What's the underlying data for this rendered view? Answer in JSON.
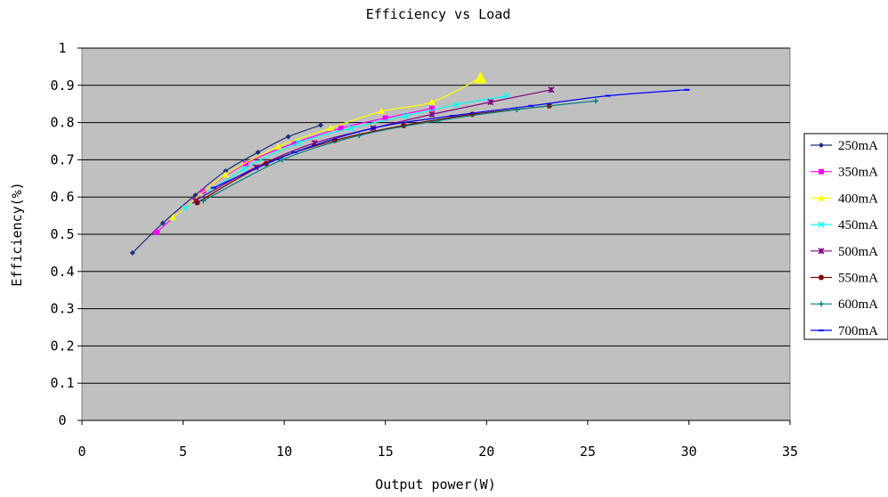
{
  "chart_data": {
    "type": "line",
    "title": "Efficiency vs Load",
    "xlabel": "Output power(W)",
    "ylabel": "Efficiency(%)",
    "xlim": [
      0,
      35
    ],
    "ylim": [
      0,
      1
    ],
    "x_ticks": [
      "0",
      "5",
      "10",
      "15",
      "20",
      "25",
      "30",
      "35"
    ],
    "y_ticks": [
      "0",
      "0.1",
      "0.2",
      "0.3",
      "0.4",
      "0.5",
      "0.6",
      "0.7",
      "0.8",
      "0.9",
      "1"
    ],
    "grid": "horizontal",
    "plot_background": "#c0c0c0",
    "legend_position": "right",
    "series": [
      {
        "name": "250mA",
        "color": "#1f2f7a",
        "marker": "diamond",
        "x": [
          2.5,
          4.0,
          5.6,
          7.1,
          8.7,
          10.2,
          11.8
        ],
        "y": [
          0.45,
          0.53,
          0.605,
          0.67,
          0.72,
          0.762,
          0.793
        ]
      },
      {
        "name": "350mA",
        "color": "#ff00ff",
        "marker": "square",
        "x": [
          3.7,
          6.0,
          8.1,
          10.5,
          12.8,
          15.0,
          17.3
        ],
        "y": [
          0.505,
          0.615,
          0.69,
          0.745,
          0.785,
          0.812,
          0.838
        ]
      },
      {
        "name": "400mA",
        "color": "#ffff00",
        "marker": "triangle",
        "x": [
          4.5,
          7.1,
          9.7,
          12.3,
          14.8,
          17.3,
          19.7
        ],
        "y": [
          0.545,
          0.66,
          0.735,
          0.785,
          0.83,
          0.855,
          0.92
        ]
      },
      {
        "name": "450mA",
        "color": "#00ffff",
        "marker": "x",
        "x": [
          5.1,
          8.0,
          10.7,
          13.3,
          16.0,
          18.5,
          21.0
        ],
        "y": [
          0.57,
          0.675,
          0.745,
          0.785,
          0.818,
          0.848,
          0.872
        ]
      },
      {
        "name": "500mA",
        "color": "#800080",
        "marker": "star",
        "x": [
          5.6,
          8.6,
          11.5,
          14.4,
          17.3,
          20.2,
          23.2
        ],
        "y": [
          0.59,
          0.68,
          0.745,
          0.785,
          0.822,
          0.855,
          0.888
        ]
      },
      {
        "name": "550mA",
        "color": "#800000",
        "marker": "circle",
        "x": [
          5.7,
          9.1,
          12.5,
          15.9,
          19.3,
          23.1
        ],
        "y": [
          0.585,
          0.69,
          0.752,
          0.792,
          0.822,
          0.845
        ]
      },
      {
        "name": "600mA",
        "color": "#008080",
        "marker": "plus",
        "x": [
          6.0,
          9.9,
          13.7,
          17.6,
          21.5,
          25.4
        ],
        "y": [
          0.59,
          0.7,
          0.765,
          0.805,
          0.835,
          0.858
        ]
      },
      {
        "name": "700mA",
        "color": "#0000ff",
        "marker": "dash",
        "x": [
          6.5,
          10.5,
          14.4,
          18.3,
          22.2,
          26.0,
          29.9
        ],
        "y": [
          0.625,
          0.72,
          0.785,
          0.818,
          0.845,
          0.872,
          0.888
        ]
      }
    ]
  }
}
